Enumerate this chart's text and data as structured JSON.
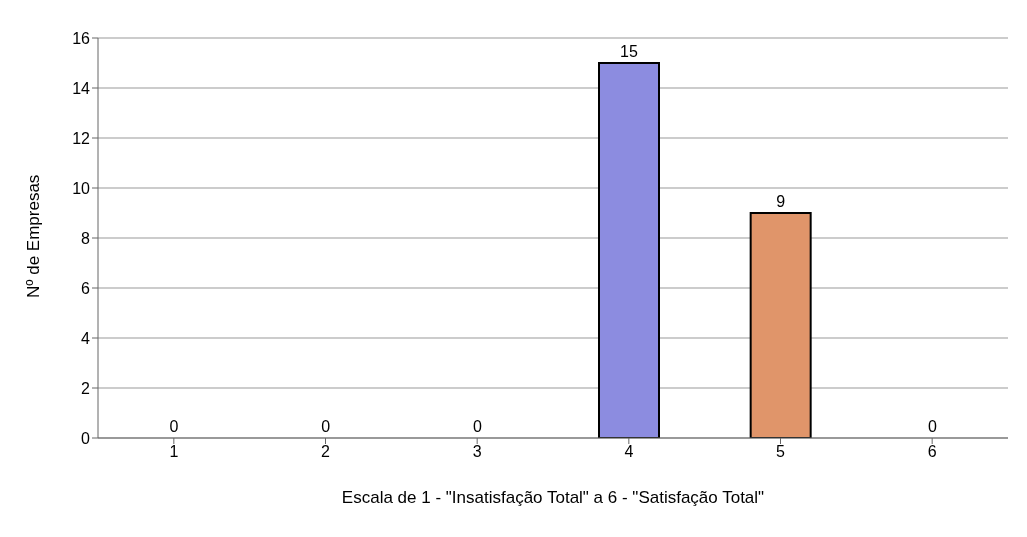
{
  "chart_data": {
    "type": "bar",
    "categories": [
      "1",
      "2",
      "3",
      "4",
      "5",
      "6"
    ],
    "values": [
      0,
      0,
      0,
      15,
      9,
      0
    ],
    "colors": [
      "#8c8ce0",
      "#8c8ce0",
      "#8c8ce0",
      "#8c8ce0",
      "#e0956a",
      "#8c8ce0"
    ],
    "xlabel": "Escala de 1 - \"Insatisfação Total\" a 6 - \"Satisfação Total\"",
    "ylabel": "Nº de Empresas",
    "ylim": [
      0,
      16
    ],
    "yticks": [
      0,
      2,
      4,
      6,
      8,
      10,
      12,
      14,
      16
    ],
    "grid": "y",
    "data_labels": true
  }
}
